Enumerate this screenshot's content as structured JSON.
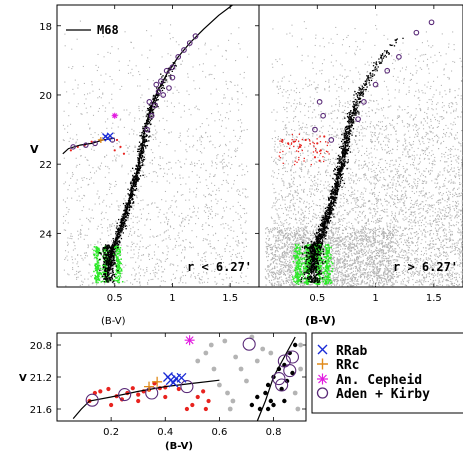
{
  "colors": {
    "field": "#b4b4b4",
    "rgb_member": "#000000",
    "hb_star": "#e8231f",
    "turnoff": "#2ee82a",
    "rrab": "#1a2bd6",
    "rrc": "#e08a1a",
    "cepheid": "#e21ae0",
    "aden_kirby": "#5a2a78",
    "isochrone": "#000000"
  },
  "chart_data": [
    {
      "type": "scatter",
      "panel": "top-left",
      "xlabel": "(B-V)",
      "ylabel": "V",
      "xlim": [
        0.0,
        1.75
      ],
      "ylim": [
        25.55,
        17.4
      ],
      "x_ticks": [
        0.5,
        1,
        1.5
      ],
      "x_tick_labels": [
        "0.5",
        "1",
        "1.5"
      ],
      "y_ticks": [
        18,
        20,
        22,
        24
      ],
      "y_tick_labels": [
        "18",
        "20",
        "22",
        "24"
      ],
      "legend_label": "M68",
      "annotation": "r < 6.27'",
      "isochrone": [
        [
          0.43,
          25.4
        ],
        [
          0.45,
          24.8
        ],
        [
          0.5,
          24.3
        ],
        [
          0.54,
          23.9
        ],
        [
          0.58,
          23.5
        ],
        [
          0.62,
          23.1
        ],
        [
          0.66,
          22.6
        ],
        [
          0.7,
          22.1
        ],
        [
          0.73,
          21.6
        ],
        [
          0.76,
          21.0
        ],
        [
          0.8,
          20.5
        ],
        [
          0.87,
          19.9
        ],
        [
          0.95,
          19.4
        ],
        [
          1.05,
          18.9
        ],
        [
          1.15,
          18.5
        ],
        [
          1.27,
          18.1
        ],
        [
          1.4,
          17.7
        ],
        [
          1.52,
          17.4
        ]
      ],
      "hb_line": [
        [
          0.05,
          21.7
        ],
        [
          0.1,
          21.55
        ],
        [
          0.2,
          21.45
        ],
        [
          0.3,
          21.4
        ],
        [
          0.4,
          21.3
        ],
        [
          0.5,
          21.25
        ]
      ],
      "aden_kirby": [
        [
          0.82,
          20.6
        ],
        [
          0.85,
          20.3
        ],
        [
          0.88,
          19.9
        ],
        [
          0.9,
          19.6
        ],
        [
          0.92,
          20.0
        ],
        [
          0.95,
          19.3
        ],
        [
          0.97,
          19.8
        ],
        [
          1.0,
          19.2
        ],
        [
          1.05,
          18.9
        ],
        [
          1.1,
          18.7
        ],
        [
          1.15,
          18.5
        ],
        [
          1.2,
          18.3
        ],
        [
          0.78,
          21.0
        ],
        [
          0.8,
          20.2
        ],
        [
          0.86,
          19.7
        ],
        [
          1.0,
          19.5
        ]
      ],
      "rrab": [
        [
          0.42,
          21.2
        ],
        [
          0.44,
          21.25
        ],
        [
          0.46,
          21.18
        ]
      ],
      "rrc": [
        [
          0.38,
          21.3
        ]
      ],
      "cepheid": [
        [
          0.5,
          20.6
        ]
      ],
      "hb_red": [
        [
          0.12,
          21.6
        ],
        [
          0.18,
          21.5
        ],
        [
          0.24,
          21.45
        ],
        [
          0.3,
          21.35
        ],
        [
          0.52,
          21.3
        ],
        [
          0.55,
          21.5
        ],
        [
          0.58,
          21.7
        ],
        [
          0.5,
          21.6
        ]
      ],
      "hb_circles": [
        [
          0.14,
          21.5
        ],
        [
          0.25,
          21.45
        ],
        [
          0.33,
          21.4
        ],
        [
          0.48,
          21.3
        ]
      ]
    },
    {
      "type": "scatter",
      "panel": "top-right",
      "xlabel": "(B-V)",
      "ylabel": "",
      "xlim": [
        0.0,
        1.75
      ],
      "ylim": [
        25.55,
        17.4
      ],
      "x_ticks": [
        0.5,
        1,
        1.5
      ],
      "x_tick_labels": [
        "0.5",
        "1",
        "1.5"
      ],
      "annotation": "r > 6.27'",
      "aden_kirby": [
        [
          0.85,
          20.7
        ],
        [
          0.9,
          20.2
        ],
        [
          1.0,
          19.7
        ],
        [
          1.1,
          19.3
        ],
        [
          1.2,
          18.9
        ],
        [
          1.35,
          18.2
        ],
        [
          1.48,
          17.9
        ],
        [
          0.52,
          20.2
        ],
        [
          0.55,
          20.6
        ],
        [
          0.48,
          21.0
        ],
        [
          0.62,
          21.3
        ]
      ],
      "hb_red": [
        [
          0.2,
          21.3
        ],
        [
          0.25,
          21.4
        ],
        [
          0.3,
          21.35
        ],
        [
          0.35,
          21.5
        ],
        [
          0.4,
          21.3
        ],
        [
          0.5,
          21.4
        ],
        [
          0.53,
          21.6
        ],
        [
          0.56,
          21.2
        ],
        [
          0.48,
          21.8
        ],
        [
          0.52,
          21.9
        ]
      ]
    },
    {
      "type": "scatter",
      "panel": "bottom-inset",
      "xlabel": "(B-V)",
      "ylabel": "V",
      "xlim": [
        0.0,
        0.92
      ],
      "ylim": [
        21.75,
        20.65
      ],
      "x_ticks": [
        0.2,
        0.4,
        0.6,
        0.8
      ],
      "x_tick_labels": [
        "0.2",
        "0.4",
        "0.6",
        "0.8"
      ],
      "y_ticks": [
        20.8,
        21.2,
        21.6
      ],
      "y_tick_labels": [
        "20.8",
        "21.2",
        "21.6"
      ],
      "hb_line": [
        [
          0.06,
          21.72
        ],
        [
          0.09,
          21.6
        ],
        [
          0.12,
          21.5
        ],
        [
          0.2,
          21.45
        ],
        [
          0.3,
          21.38
        ],
        [
          0.4,
          21.32
        ],
        [
          0.5,
          21.28
        ],
        [
          0.6,
          21.24
        ]
      ],
      "rgb_line": [
        [
          0.74,
          21.75
        ],
        [
          0.77,
          21.5
        ],
        [
          0.8,
          21.2
        ],
        [
          0.84,
          20.95
        ],
        [
          0.88,
          20.7
        ]
      ],
      "aden_kirby": [
        [
          0.13,
          21.49
        ],
        [
          0.25,
          21.42
        ],
        [
          0.35,
          21.4
        ],
        [
          0.48,
          21.32
        ],
        [
          0.71,
          20.79
        ],
        [
          0.84,
          21.0
        ],
        [
          0.86,
          21.12
        ],
        [
          0.87,
          20.95
        ],
        [
          0.83,
          21.3
        ],
        [
          0.82,
          21.22
        ]
      ],
      "rrab": [
        [
          0.41,
          21.2
        ],
        [
          0.42,
          21.24
        ],
        [
          0.43,
          21.27
        ],
        [
          0.44,
          21.22
        ],
        [
          0.46,
          21.21
        ]
      ],
      "rrc": [
        [
          0.34,
          21.32
        ],
        [
          0.37,
          21.26
        ]
      ],
      "cepheid": [
        [
          0.49,
          20.74
        ]
      ],
      "hb_red": [
        [
          0.12,
          21.5
        ],
        [
          0.14,
          21.4
        ],
        [
          0.16,
          21.38
        ],
        [
          0.19,
          21.35
        ],
        [
          0.22,
          21.44
        ],
        [
          0.24,
          21.48
        ],
        [
          0.26,
          21.4
        ],
        [
          0.28,
          21.34
        ],
        [
          0.3,
          21.42
        ],
        [
          0.32,
          21.38
        ],
        [
          0.34,
          21.36
        ],
        [
          0.36,
          21.28
        ],
        [
          0.38,
          21.34
        ],
        [
          0.4,
          21.33
        ],
        [
          0.45,
          21.35
        ],
        [
          0.5,
          21.55
        ],
        [
          0.52,
          21.45
        ],
        [
          0.54,
          21.38
        ],
        [
          0.55,
          21.6
        ],
        [
          0.56,
          21.5
        ],
        [
          0.48,
          21.6
        ],
        [
          0.2,
          21.55
        ],
        [
          0.3,
          21.5
        ],
        [
          0.4,
          21.45
        ]
      ],
      "rgb_black": [
        [
          0.72,
          21.55
        ],
        [
          0.74,
          21.45
        ],
        [
          0.75,
          21.6
        ],
        [
          0.77,
          21.4
        ],
        [
          0.78,
          21.3
        ],
        [
          0.79,
          21.5
        ],
        [
          0.8,
          21.2
        ],
        [
          0.82,
          21.1
        ],
        [
          0.83,
          21.35
        ],
        [
          0.84,
          21.05
        ],
        [
          0.85,
          21.25
        ],
        [
          0.86,
          20.9
        ],
        [
          0.87,
          21.15
        ],
        [
          0.88,
          20.8
        ],
        [
          0.78,
          21.6
        ],
        [
          0.8,
          21.55
        ],
        [
          0.84,
          21.5
        ]
      ],
      "field_grey": [
        [
          0.55,
          20.9
        ],
        [
          0.62,
          20.75
        ],
        [
          0.66,
          20.95
        ],
        [
          0.68,
          21.1
        ],
        [
          0.6,
          21.3
        ],
        [
          0.72,
          20.7
        ],
        [
          0.74,
          21.0
        ],
        [
          0.9,
          20.8
        ],
        [
          0.88,
          21.4
        ],
        [
          0.65,
          21.5
        ],
        [
          0.58,
          21.1
        ],
        [
          0.7,
          21.25
        ],
        [
          0.52,
          21.0
        ],
        [
          0.64,
          21.6
        ],
        [
          0.89,
          21.6
        ],
        [
          0.9,
          21.1
        ],
        [
          0.76,
          20.85
        ],
        [
          0.79,
          20.9
        ],
        [
          0.63,
          21.4
        ],
        [
          0.57,
          20.8
        ]
      ]
    }
  ],
  "legend": {
    "items": [
      {
        "symbol": "x",
        "label": "RRab"
      },
      {
        "symbol": "+",
        "label": "RRc"
      },
      {
        "symbol": "*",
        "label": "An. Cepheid"
      },
      {
        "symbol": "o",
        "label": "Aden + Kirby"
      }
    ]
  }
}
